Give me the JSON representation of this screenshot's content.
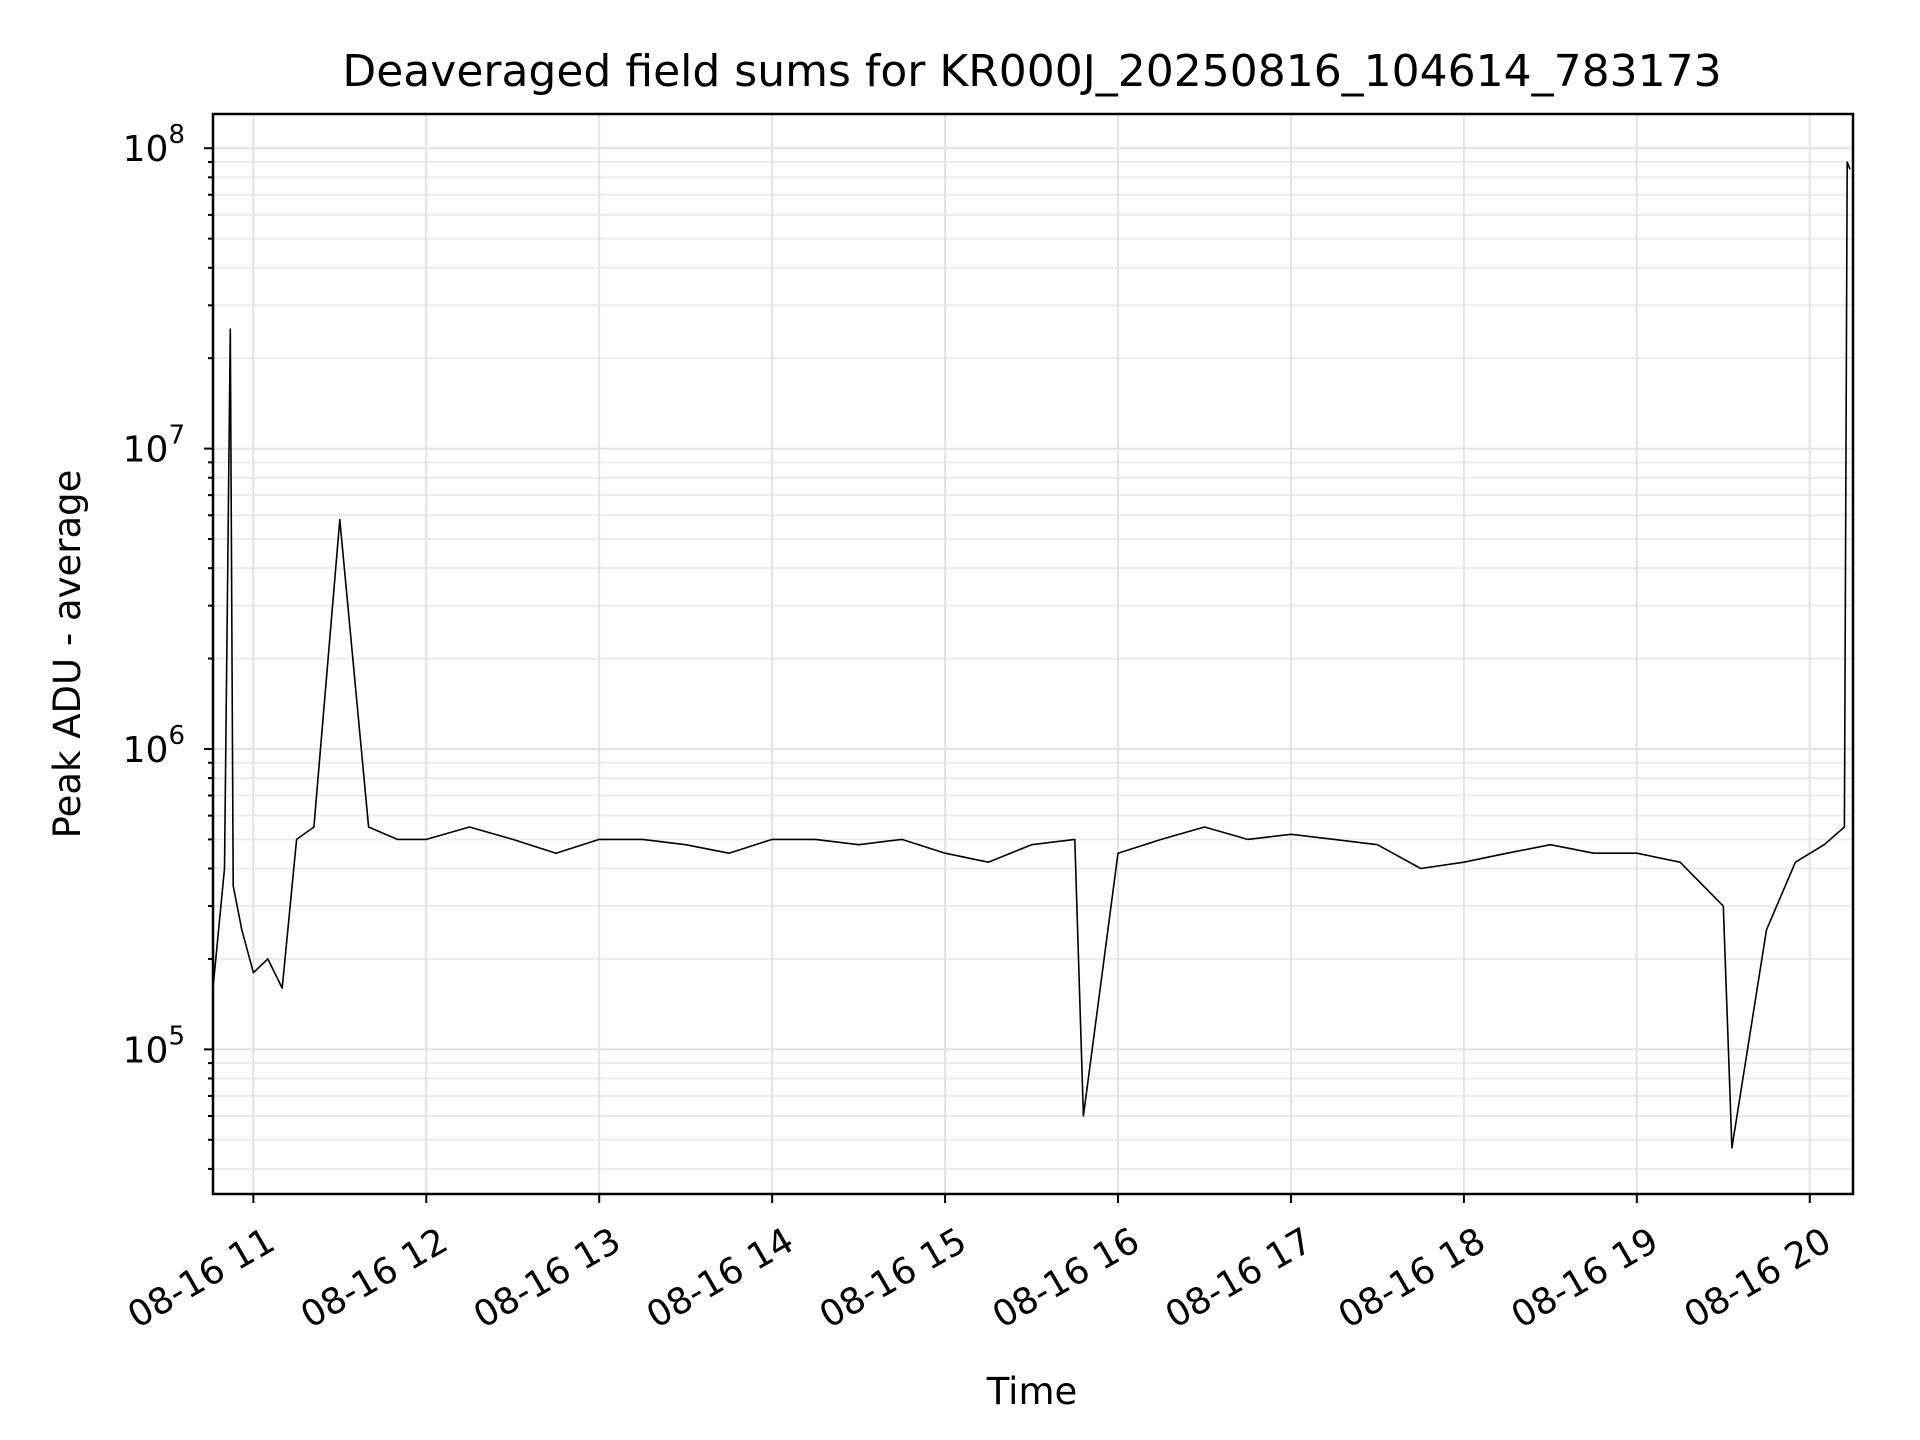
{
  "chart_data": {
    "type": "line",
    "title": "Deaveraged field sums for KR000J_20250816_104614_783173",
    "xlabel": "Time",
    "ylabel": "Peak ADU - average",
    "yscale": "log",
    "grid": true,
    "line_color": "#000000",
    "xlim": [
      "2025-08-16 10:46",
      "2025-08-16 20:15"
    ],
    "ylim": [
      33000,
      130000000
    ],
    "x_ticks": [
      {
        "value": "2025-08-16 11:00",
        "label": "08-16 11"
      },
      {
        "value": "2025-08-16 12:00",
        "label": "08-16 12"
      },
      {
        "value": "2025-08-16 13:00",
        "label": "08-16 13"
      },
      {
        "value": "2025-08-16 14:00",
        "label": "08-16 14"
      },
      {
        "value": "2025-08-16 15:00",
        "label": "08-16 15"
      },
      {
        "value": "2025-08-16 16:00",
        "label": "08-16 16"
      },
      {
        "value": "2025-08-16 17:00",
        "label": "08-16 17"
      },
      {
        "value": "2025-08-16 18:00",
        "label": "08-16 18"
      },
      {
        "value": "2025-08-16 19:00",
        "label": "08-16 19"
      },
      {
        "value": "2025-08-16 20:00",
        "label": "08-16 20"
      }
    ],
    "y_ticks": [
      {
        "value": 100000,
        "base": "10",
        "exp": "5"
      },
      {
        "value": 1000000,
        "base": "10",
        "exp": "6"
      },
      {
        "value": 10000000,
        "base": "10",
        "exp": "7"
      },
      {
        "value": 100000000,
        "base": "10",
        "exp": "8"
      }
    ],
    "series": [
      {
        "x": [
          "2025-08-16 10:46",
          "2025-08-16 10:50",
          "2025-08-16 10:52",
          "2025-08-16 10:53",
          "2025-08-16 10:56",
          "2025-08-16 11:00",
          "2025-08-16 11:05",
          "2025-08-16 11:10",
          "2025-08-16 11:15",
          "2025-08-16 11:21",
          "2025-08-16 11:30",
          "2025-08-16 11:40",
          "2025-08-16 11:50",
          "2025-08-16 12:00",
          "2025-08-16 12:15",
          "2025-08-16 12:30",
          "2025-08-16 12:45",
          "2025-08-16 13:00",
          "2025-08-16 13:15",
          "2025-08-16 13:30",
          "2025-08-16 13:45",
          "2025-08-16 14:00",
          "2025-08-16 14:15",
          "2025-08-16 14:30",
          "2025-08-16 14:45",
          "2025-08-16 15:00",
          "2025-08-16 15:15",
          "2025-08-16 15:30",
          "2025-08-16 15:45",
          "2025-08-16 15:48",
          "2025-08-16 16:00",
          "2025-08-16 16:15",
          "2025-08-16 16:30",
          "2025-08-16 16:45",
          "2025-08-16 17:00",
          "2025-08-16 17:15",
          "2025-08-16 17:30",
          "2025-08-16 17:45",
          "2025-08-16 18:00",
          "2025-08-16 18:15",
          "2025-08-16 18:30",
          "2025-08-16 18:45",
          "2025-08-16 19:00",
          "2025-08-16 19:15",
          "2025-08-16 19:30",
          "2025-08-16 19:33",
          "2025-08-16 19:45",
          "2025-08-16 19:55",
          "2025-08-16 20:05",
          "2025-08-16 20:12",
          "2025-08-16 20:13",
          "2025-08-16 20:14"
        ],
        "y": [
          160000,
          400000,
          25000000,
          350000,
          250000,
          180000,
          200000,
          160000,
          500000,
          550000,
          5800000,
          550000,
          500000,
          500000,
          550000,
          500000,
          450000,
          500000,
          500000,
          480000,
          450000,
          500000,
          500000,
          480000,
          500000,
          450000,
          420000,
          480000,
          500000,
          60000,
          450000,
          500000,
          550000,
          500000,
          520000,
          500000,
          480000,
          400000,
          420000,
          450000,
          480000,
          450000,
          450000,
          420000,
          300000,
          47000,
          250000,
          420000,
          480000,
          550000,
          90000000,
          85000000
        ]
      }
    ]
  }
}
